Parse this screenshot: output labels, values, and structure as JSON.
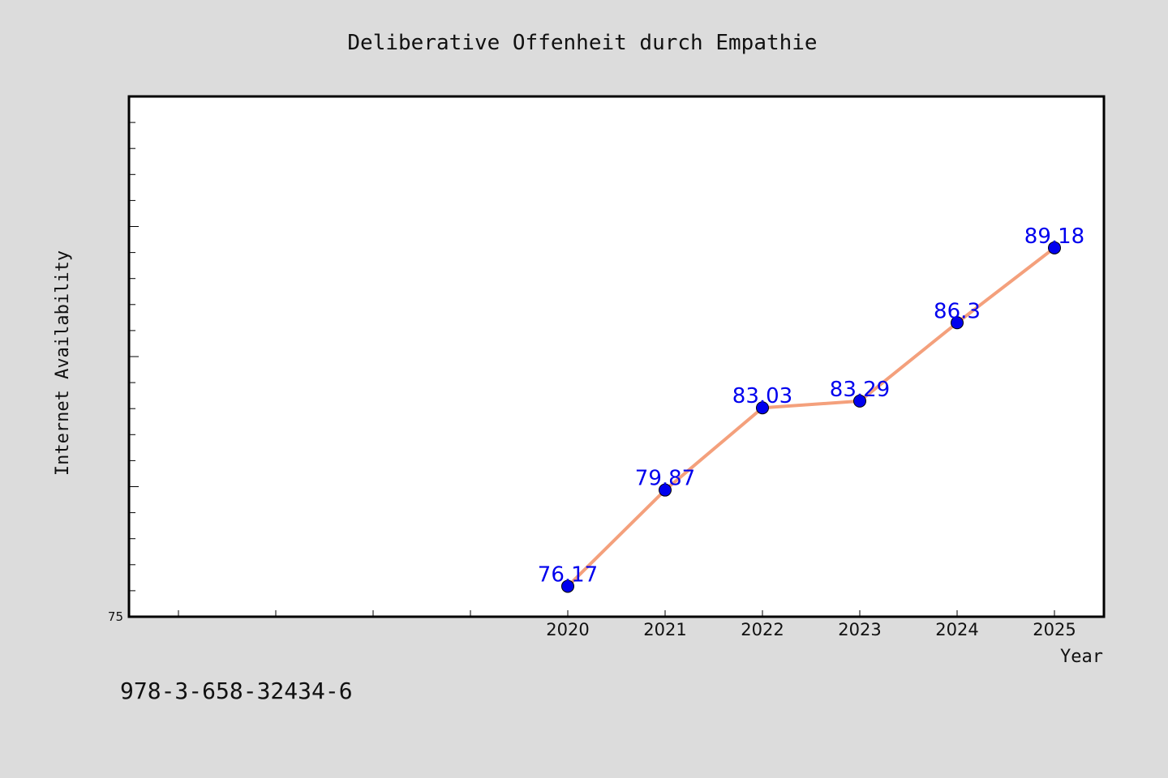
{
  "chart_data": {
    "type": "line",
    "title": "Deliberative Offenheit durch Empathie",
    "xlabel": "Year",
    "ylabel": "Internet Availability",
    "x": [
      "2020",
      "2021",
      "2022",
      "2023",
      "2024",
      "2025"
    ],
    "series": [
      {
        "values": [
          76.17,
          79.87,
          83.03,
          83.29,
          86.3,
          89.18
        ],
        "labels": [
          "76.17",
          "79.87",
          "83.03",
          "83.29",
          "86.3",
          "89.18"
        ]
      }
    ],
    "y_tick_labels": [
      "75"
    ],
    "ylim": [
      75,
      95
    ],
    "grid": false,
    "line_color": "#f4a07c",
    "marker_color": "#0000ee",
    "label_color": "#0000ee"
  },
  "footer": {
    "isbn": "978-3-658-32434-6"
  }
}
